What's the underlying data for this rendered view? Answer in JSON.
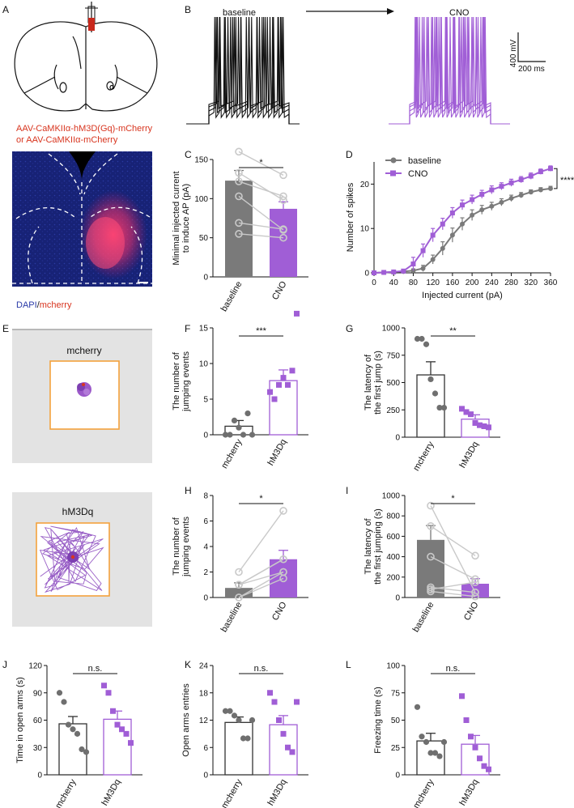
{
  "panel_letters": [
    "A",
    "B",
    "C",
    "D",
    "E",
    "F",
    "G",
    "H",
    "I",
    "J",
    "K",
    "L"
  ],
  "colors": {
    "purple": "#a05ed6",
    "gray": "#7a7a7a",
    "black": "#111111",
    "red": "#d8351f",
    "orange": "#f3a23c",
    "arena_bg": "#e3e3e3"
  },
  "panel_a": {
    "virus_line1": "AAV-CaMKIIα-hM3D(Gq)-mCherry",
    "virus_line2": "or AAV-CaMKIIα-mCherry",
    "stain_dapi": "DAPI",
    "stain_sep": "/",
    "stain_mcherry": "mcherry"
  },
  "panel_b": {
    "left_label": "baseline",
    "right_label": "CNO",
    "scale_v": "400 mV",
    "scale_t": "200 ms"
  },
  "panel_e": {
    "top_label": "mcherry",
    "bottom_label": "hM3Dq"
  },
  "chart_data": [
    {
      "id": "C",
      "type": "bar",
      "ylabel": [
        "Minimal injected current",
        "to induce AP (pA)"
      ],
      "categories": [
        "baseline",
        "CNO"
      ],
      "values": [
        123,
        87
      ],
      "sem": [
        13,
        9
      ],
      "ylim": [
        0,
        150
      ],
      "yticks": [
        0,
        50,
        100,
        150
      ],
      "significance": "*",
      "paired": true,
      "points": [
        [
          160,
          130
        ],
        [
          133,
          98
        ],
        [
          122,
          103
        ],
        [
          103,
          60
        ],
        [
          69,
          61
        ],
        [
          55,
          50
        ]
      ]
    },
    {
      "id": "D",
      "type": "line",
      "xlabel": "Injected current (pA)",
      "ylabel": "Number of spikes",
      "xlim": [
        0,
        360
      ],
      "ylim": [
        0,
        25
      ],
      "xticks": [
        0,
        40,
        80,
        120,
        160,
        200,
        240,
        280,
        320,
        360
      ],
      "yticks": [
        0,
        10,
        20
      ],
      "significance": "****",
      "x": [
        0,
        20,
        40,
        60,
        80,
        100,
        120,
        140,
        160,
        180,
        200,
        220,
        240,
        260,
        280,
        300,
        320,
        340,
        360
      ],
      "series": [
        {
          "name": "baseline",
          "values": [
            0,
            0.1,
            0.2,
            0.3,
            0.5,
            1,
            3,
            5.5,
            8.5,
            11,
            13,
            14.2,
            15,
            15.9,
            16.8,
            17.5,
            18.2,
            18.7,
            19
          ],
          "sem": [
            0,
            0.1,
            0.2,
            0.3,
            0.4,
            0.7,
            1,
            1.5,
            1.6,
            1.4,
            1.2,
            1,
            0.9,
            0.8,
            0.7,
            0.6,
            0.5,
            0.5,
            0.5
          ]
        },
        {
          "name": "CNO",
          "values": [
            0,
            0.1,
            0.2,
            0.4,
            2,
            5,
            8.5,
            11,
            13.5,
            15.3,
            16.5,
            17.7,
            18.7,
            19.5,
            20.3,
            21,
            21.8,
            22.8,
            23.5
          ],
          "sem": [
            0,
            0.1,
            0.2,
            0.4,
            1.5,
            1.5,
            1.5,
            1.3,
            1.2,
            1.1,
            1,
            0.9,
            0.9,
            0.8,
            0.8,
            0.7,
            0.7,
            0.6,
            0.6
          ]
        }
      ]
    },
    {
      "id": "F",
      "type": "bar",
      "ylabel": [
        "The number of",
        "jumping events"
      ],
      "categories": [
        "mcherry",
        "hM3Dq"
      ],
      "values": [
        1.2,
        7.6
      ],
      "sem": [
        0.8,
        1.5
      ],
      "ylim": [
        0,
        15
      ],
      "yticks": [
        0,
        5,
        10,
        15
      ],
      "significance": "***",
      "paired": false,
      "open": true,
      "points": [
        [
          0,
          0,
          2,
          1,
          0,
          3,
          0
        ],
        [
          6,
          5,
          7,
          8,
          7,
          9,
          17
        ]
      ]
    },
    {
      "id": "G",
      "type": "bar",
      "ylabel": [
        "The latency of",
        "the first jump (s)"
      ],
      "categories": [
        "mcherry",
        "hM3Dq"
      ],
      "values": [
        570,
        165
      ],
      "sem": [
        120,
        40
      ],
      "ylim": [
        0,
        1000
      ],
      "yticks": [
        0,
        250,
        500,
        750,
        1000
      ],
      "significance": "**",
      "paired": false,
      "open": true,
      "points": [
        [
          900,
          900,
          850,
          530,
          400,
          270,
          270
        ],
        [
          260,
          230,
          210,
          130,
          110,
          100,
          90
        ]
      ]
    },
    {
      "id": "H",
      "type": "bar",
      "ylabel": [
        "The number of",
        "jumping events"
      ],
      "categories": [
        "baseline",
        "CNO"
      ],
      "values": [
        0.75,
        3.0
      ],
      "sem": [
        0.4,
        0.7
      ],
      "ylim": [
        0,
        8
      ],
      "yticks": [
        0,
        2,
        4,
        6,
        8
      ],
      "significance": "*",
      "paired": true,
      "points": [
        [
          2,
          1,
          1,
          1,
          0,
          0
        ],
        [
          6.8,
          3,
          3,
          2,
          2,
          1.5
        ]
      ]
    },
    {
      "id": "I",
      "type": "bar",
      "ylabel": [
        "The latency of",
        "the first jumping (s)"
      ],
      "categories": [
        "baseline",
        "CNO"
      ],
      "values": [
        565,
        135
      ],
      "sem": [
        140,
        50
      ],
      "ylim": [
        0,
        1000
      ],
      "yticks": [
        0,
        200,
        400,
        600,
        800,
        1000
      ],
      "significance": "*",
      "paired": true,
      "points": [
        [
          900,
          700,
          400,
          100,
          80,
          60
        ],
        [
          50,
          410,
          180,
          50,
          150,
          10
        ]
      ]
    },
    {
      "id": "J",
      "type": "bar",
      "ylabel": [
        "Time in open arms (s)"
      ],
      "categories": [
        "mcherry",
        "hM3Dq"
      ],
      "values": [
        56,
        61
      ],
      "sem": [
        8,
        9
      ],
      "ylim": [
        0,
        120
      ],
      "yticks": [
        0,
        30,
        60,
        90,
        120
      ],
      "significance": "n.s.",
      "paired": false,
      "open": true,
      "points": [
        [
          90,
          80,
          55,
          50,
          45,
          28,
          25
        ],
        [
          98,
          90,
          70,
          55,
          50,
          45,
          35
        ]
      ]
    },
    {
      "id": "K",
      "type": "bar",
      "ylabel": [
        "Open arms entries"
      ],
      "categories": [
        "mcherry",
        "hM3Dq"
      ],
      "values": [
        11.5,
        11
      ],
      "sem": [
        1.2,
        2
      ],
      "ylim": [
        0,
        24
      ],
      "yticks": [
        0,
        6,
        12,
        18,
        24
      ],
      "significance": "n.s.",
      "paired": false,
      "open": true,
      "points": [
        [
          14,
          14,
          13,
          12,
          8,
          8,
          12
        ],
        [
          18,
          16,
          12,
          9,
          6,
          5,
          16
        ]
      ]
    },
    {
      "id": "L",
      "type": "bar",
      "ylabel": [
        "Freezing time (s)"
      ],
      "categories": [
        "mcherry",
        "hM3Dq"
      ],
      "values": [
        31,
        28
      ],
      "sem": [
        7,
        8
      ],
      "ylim": [
        0,
        100
      ],
      "yticks": [
        0,
        25,
        50,
        75,
        100
      ],
      "significance": "n.s.",
      "paired": false,
      "open": true,
      "points": [
        [
          62,
          35,
          30,
          20,
          20,
          17,
          30
        ],
        [
          72,
          50,
          35,
          25,
          15,
          8,
          5
        ]
      ]
    }
  ]
}
